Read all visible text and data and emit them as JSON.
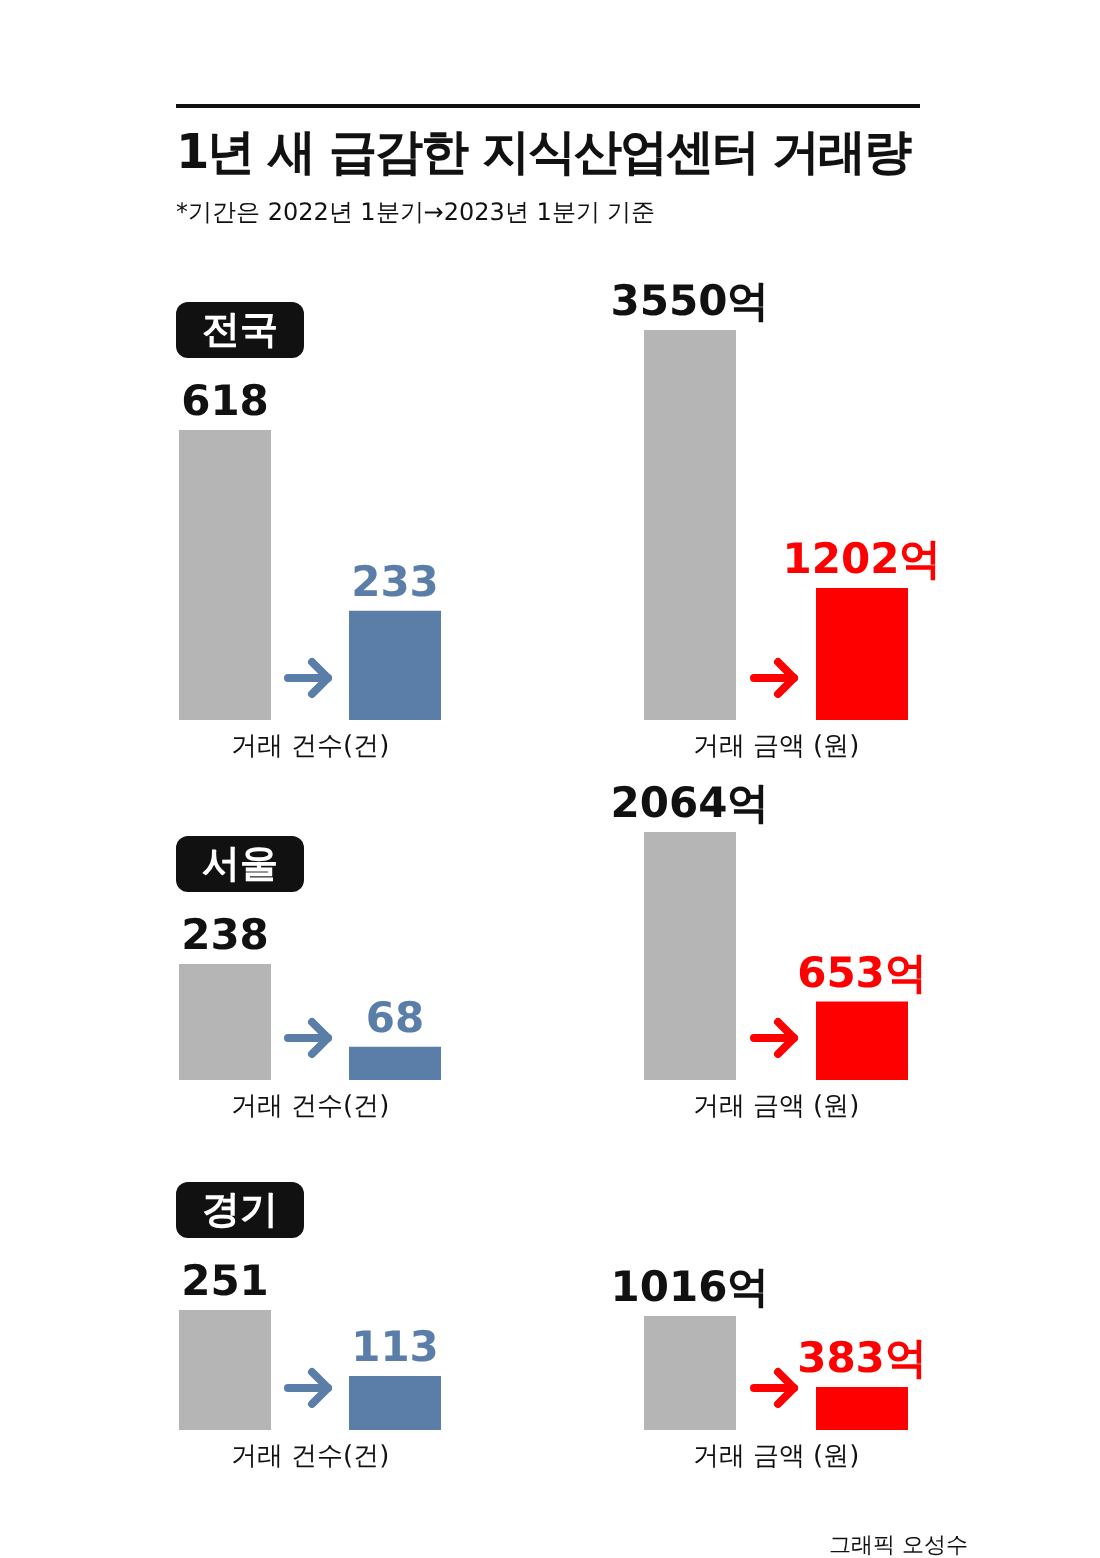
{
  "chart_data": [
    {
      "type": "other",
      "title": "1년 새 급감한 지식산업센터 거래량",
      "annotations": [
        "*기간은 2022년 1분기→2023년 1분기 기준"
      ]
    },
    {
      "type": "bar",
      "title": "전국",
      "xlabel": "거래 건수(건)",
      "categories": [
        null,
        null
      ],
      "values": [
        618,
        233
      ],
      "colors": [
        "#b5b5b5",
        "#5a7ea8"
      ],
      "value_labels": [
        "618",
        "233"
      ]
    },
    {
      "type": "bar",
      "xlabel": "거래 금액 (원)",
      "categories": [
        null,
        null
      ],
      "values": [
        3550,
        1202
      ],
      "colors": [
        "#b5b5b5",
        "#ff0000"
      ],
      "value_labels": [
        "3550억",
        "1202억"
      ]
    },
    {
      "type": "bar",
      "title": "서울",
      "xlabel": "거래 건수(건)",
      "categories": [
        null,
        null
      ],
      "values": [
        238,
        68
      ],
      "colors": [
        "#b5b5b5",
        "#5a7ea8"
      ],
      "value_labels": [
        "238",
        "68"
      ]
    },
    {
      "type": "bar",
      "xlabel": "거래 금액 (원)",
      "categories": [
        null,
        null
      ],
      "values": [
        2064,
        653
      ],
      "colors": [
        "#b5b5b5",
        "#ff0000"
      ],
      "value_labels": [
        "2064억",
        "653억"
      ]
    },
    {
      "type": "bar",
      "title": "경기",
      "xlabel": "거래 건수(건)",
      "categories": [
        null,
        null
      ],
      "values": [
        251,
        113
      ],
      "colors": [
        "#b5b5b5",
        "#5a7ea8"
      ],
      "value_labels": [
        "251",
        "113"
      ]
    },
    {
      "type": "bar",
      "xlabel": "거래 금액 (원)",
      "categories": [
        null,
        null
      ],
      "values": [
        1016,
        383
      ],
      "colors": [
        "#b5b5b5",
        "#ff0000"
      ],
      "value_labels": [
        "1016억",
        "383억"
      ],
      "annotations": [
        "그래픽 오성수"
      ]
    }
  ]
}
